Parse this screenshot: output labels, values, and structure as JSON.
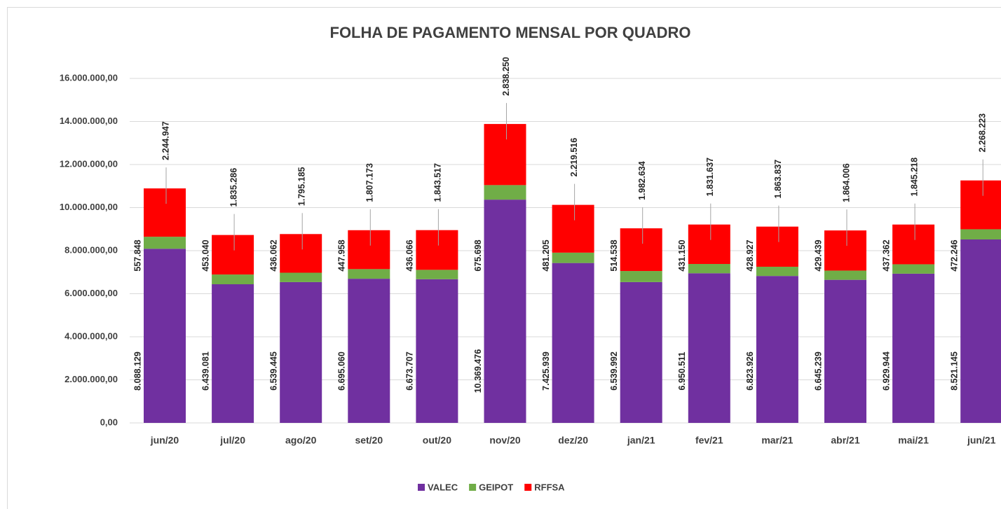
{
  "chart_data": {
    "type": "stacked_bar",
    "title": "FOLHA DE PAGAMENTO MENSAL POR QUADRO",
    "categories": [
      "jun/20",
      "jul/20",
      "ago/20",
      "set/20",
      "out/20",
      "nov/20",
      "dez/20",
      "jan/21",
      "fev/21",
      "mar/21",
      "abr/21",
      "mai/21",
      "jun/21"
    ],
    "series": [
      {
        "name": "VALEC",
        "color": "#7030a0",
        "values": [
          8088129,
          6439081,
          6539445,
          6695060,
          6673707,
          10369476,
          7425939,
          6539992,
          6950511,
          6823926,
          6645239,
          6929944,
          8521145
        ],
        "value_labels": [
          "8.088.129",
          "6.439.081",
          "6.539.445",
          "6.695.060",
          "6.673.707",
          "10.369.476",
          "7.425.939",
          "6.539.992",
          "6.950.511",
          "6.823.926",
          "6.645.239",
          "6.929.944",
          "8.521.145"
        ]
      },
      {
        "name": "GEIPOT",
        "color": "#70ad47",
        "values": [
          557848,
          453040,
          436062,
          447958,
          436066,
          675698,
          481205,
          514538,
          431150,
          428927,
          429439,
          437362,
          472246
        ],
        "value_labels": [
          "557.848",
          "453.040",
          "436.062",
          "447.958",
          "436.066",
          "675.698",
          "481.205",
          "514.538",
          "431.150",
          "428.927",
          "429.439",
          "437.362",
          "472.246"
        ]
      },
      {
        "name": "RFFSA",
        "color": "#ff0000",
        "values": [
          2244947,
          1835286,
          1795185,
          1807173,
          1843517,
          2838250,
          2219516,
          1982634,
          1831637,
          1863837,
          1864006,
          1845218,
          2268223
        ],
        "value_labels": [
          "2.244.947",
          "1.835.286",
          "1.795.185",
          "1.807.173",
          "1.843.517",
          "2.838.250",
          "2.219.516",
          "1.982.634",
          "1.831.637",
          "1.863.837",
          "1.864.006",
          "1.845.218",
          "2.268.223"
        ]
      }
    ],
    "ylim": [
      0,
      16000000
    ],
    "yticks": [
      {
        "value": 0,
        "label": "0,00"
      },
      {
        "value": 2000000,
        "label": "2.000.000,00"
      },
      {
        "value": 4000000,
        "label": "4.000.000,00"
      },
      {
        "value": 6000000,
        "label": "6.000.000,00"
      },
      {
        "value": 8000000,
        "label": "8.000.000,00"
      },
      {
        "value": 10000000,
        "label": "10.000.000,00"
      },
      {
        "value": 12000000,
        "label": "12.000.000,00"
      },
      {
        "value": 14000000,
        "label": "14.000.000,00"
      },
      {
        "value": 16000000,
        "label": "16.000.000,00"
      }
    ],
    "grid": true,
    "legend": "bottom"
  }
}
